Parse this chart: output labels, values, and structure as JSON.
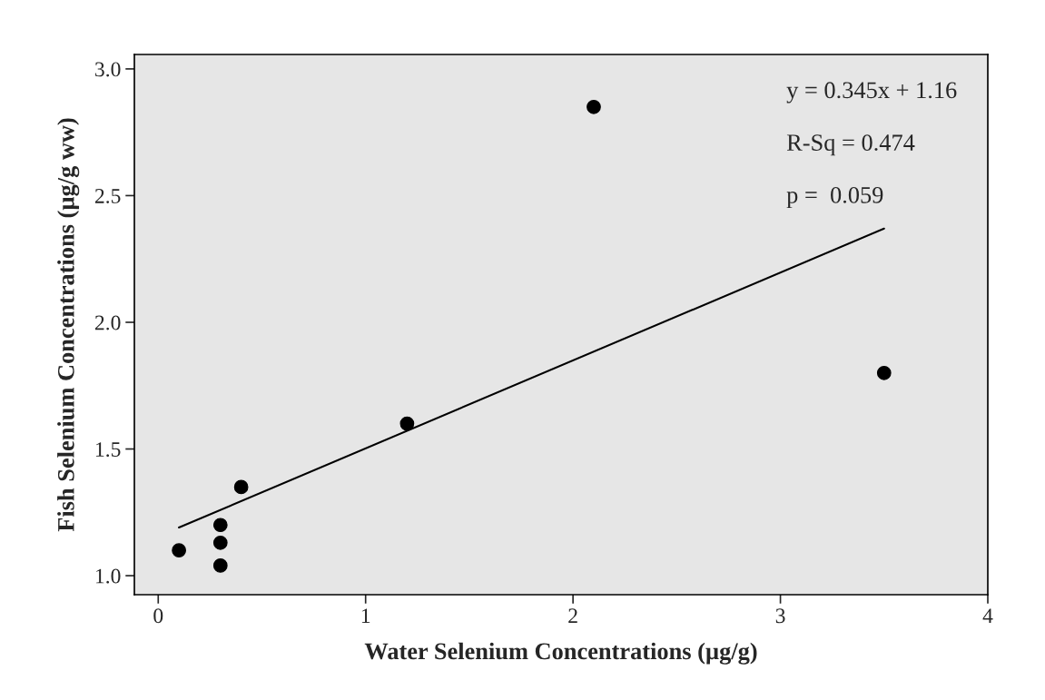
{
  "chart_data": {
    "type": "scatter",
    "xlabel": "Water Selenium Concentrations (µg/g)",
    "ylabel": "Fish Selenium Concentrations (µg/g ww)",
    "series": [
      {
        "color": "#000000",
        "marker": "circle",
        "x": [
          0.1,
          0.3,
          0.3,
          0.3,
          0.4,
          1.2,
          2.1,
          3.5
        ],
        "values": [
          1.1,
          1.2,
          1.13,
          1.04,
          1.35,
          1.6,
          2.85,
          1.8
        ]
      },
      {
        "type": "line",
        "color": "#000000",
        "line_style": "solid",
        "x": [
          0.1,
          3.5
        ],
        "values": [
          1.19,
          2.37
        ]
      }
    ],
    "annotations": [
      "y = 0.345x + 1.16",
      "R-Sq = 0.474",
      "p =  0.059"
    ],
    "xlim": [
      -0.115,
      4.0
    ],
    "ylim": [
      0.925,
      3.057
    ],
    "xticks": [
      {
        "value": 0,
        "label": "0"
      },
      {
        "value": 1,
        "label": "1"
      },
      {
        "value": 2,
        "label": "2"
      },
      {
        "value": 3,
        "label": "3"
      },
      {
        "value": 4,
        "label": "4"
      }
    ],
    "yticks": [
      {
        "value": 1.0,
        "label": "1.0"
      },
      {
        "value": 1.5,
        "label": "1.5"
      },
      {
        "value": 2.0,
        "label": "2.0"
      },
      {
        "value": 2.5,
        "label": "2.5"
      },
      {
        "value": 3.0,
        "label": "3.0"
      }
    ],
    "grid": false
  }
}
